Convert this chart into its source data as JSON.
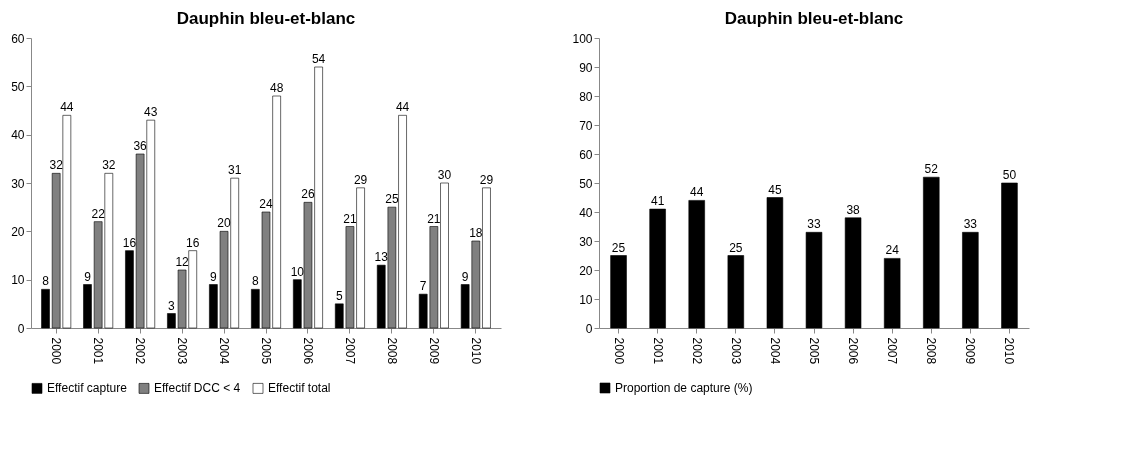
{
  "chart_data": [
    {
      "type": "bar",
      "title": "Dauphin bleu-et-blanc",
      "categories": [
        "2000",
        "2001",
        "2002",
        "2003",
        "2004",
        "2005",
        "2006",
        "2007",
        "2008",
        "2009",
        "2010"
      ],
      "series": [
        {
          "name": "Effectif capture",
          "color": "#000000",
          "values": [
            8,
            9,
            16,
            3,
            9,
            8,
            10,
            5,
            13,
            7,
            9
          ]
        },
        {
          "name": "Effectif DCC < 4",
          "color": "#808080",
          "values": [
            32,
            22,
            36,
            12,
            20,
            24,
            26,
            21,
            25,
            21,
            18
          ]
        },
        {
          "name": "Effectif total",
          "color": "#ffffff",
          "values": [
            44,
            32,
            43,
            16,
            31,
            48,
            54,
            29,
            44,
            30,
            29
          ]
        }
      ],
      "ylim": [
        0,
        60
      ],
      "yticks": [
        0,
        10,
        20,
        30,
        40,
        50,
        60
      ],
      "grid": false,
      "legend": "bottom",
      "data_labels": true
    },
    {
      "type": "bar",
      "title": "Dauphin bleu-et-blanc",
      "categories": [
        "2000",
        "2001",
        "2002",
        "2003",
        "2004",
        "2005",
        "2006",
        "2007",
        "2008",
        "2009",
        "2010"
      ],
      "series": [
        {
          "name": "Proportion de capture (%)",
          "color": "#000000",
          "values": [
            25,
            41,
            44,
            25,
            45,
            33,
            38,
            24,
            52,
            33,
            50
          ]
        }
      ],
      "ylim": [
        0,
        100
      ],
      "yticks": [
        0,
        10,
        20,
        30,
        40,
        50,
        60,
        70,
        80,
        90,
        100
      ],
      "grid": false,
      "legend": "bottom",
      "data_labels": true
    }
  ]
}
